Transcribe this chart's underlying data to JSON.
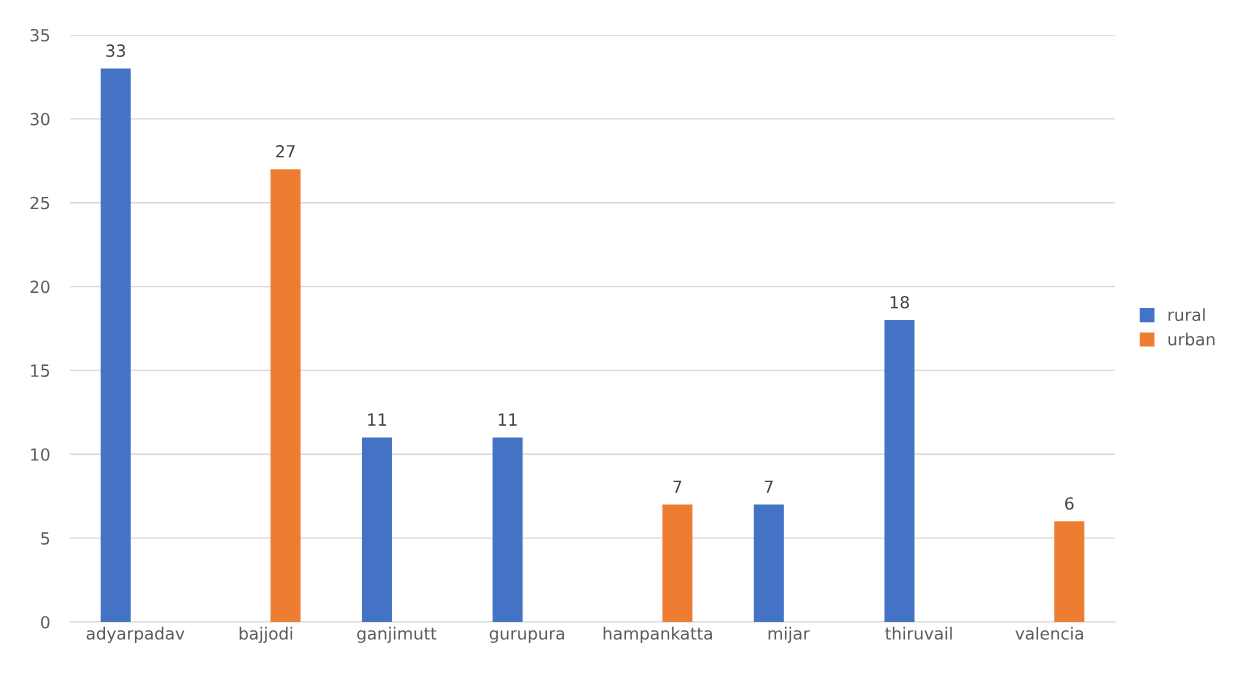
{
  "chart_data": {
    "type": "bar",
    "categories": [
      "adyarpadav",
      "bajjodi",
      "ganjimutt",
      "gurupura",
      "hampankatta",
      "mijar",
      "thiruvail",
      "valencia"
    ],
    "series": [
      {
        "name": "rural",
        "color": "#4472c4",
        "values": [
          33,
          null,
          11,
          11,
          null,
          7,
          18,
          null
        ]
      },
      {
        "name": "urban",
        "color": "#ed7d31",
        "values": [
          null,
          27,
          null,
          null,
          7,
          null,
          null,
          6
        ]
      }
    ],
    "ylim": [
      0,
      35
    ],
    "yticks": [
      0,
      5,
      10,
      15,
      20,
      25,
      30,
      35
    ],
    "grid": "y",
    "legend": "right",
    "data_labels": true
  }
}
